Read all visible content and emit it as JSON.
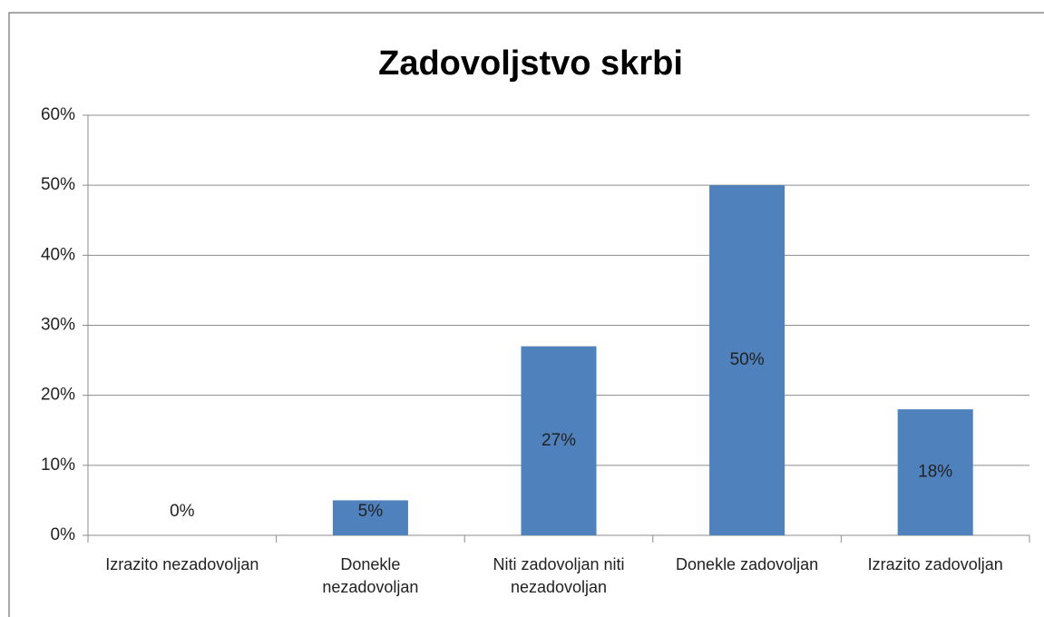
{
  "chart_data": {
    "type": "bar",
    "title": "Zadovoljstvo skrbi",
    "categories": [
      "Izrazito nezadovoljan",
      "Donekle nezadovoljan",
      "Niti zadovoljan niti nezadovoljan",
      "Donekle zadovoljan",
      "Izrazito zadovoljan"
    ],
    "values": [
      0,
      5,
      27,
      50,
      18
    ],
    "value_labels": [
      "0%",
      "5%",
      "27%",
      "50%",
      "18%"
    ],
    "color": "#4f81bd",
    "ylim": [
      0,
      60
    ],
    "yticks": [
      {
        "value": 0,
        "label": "0%"
      },
      {
        "value": 10,
        "label": "10%"
      },
      {
        "value": 20,
        "label": "20%"
      },
      {
        "value": 30,
        "label": "30%"
      },
      {
        "value": 40,
        "label": "40%"
      },
      {
        "value": 50,
        "label": "50%"
      },
      {
        "value": 60,
        "label": "60%"
      }
    ],
    "grid": true
  }
}
